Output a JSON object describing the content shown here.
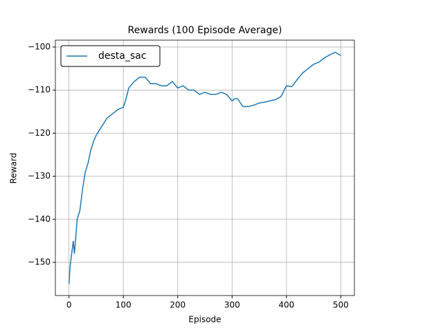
{
  "chart_data": {
    "type": "line",
    "title": "Rewards (100 Episode Average)",
    "x_label": "Episode",
    "y_label": "Reward",
    "x": [
      0,
      2,
      5,
      8,
      10,
      12,
      15,
      20,
      25,
      30,
      35,
      40,
      45,
      50,
      60,
      70,
      80,
      90,
      100,
      105,
      110,
      120,
      130,
      140,
      150,
      160,
      170,
      180,
      190,
      200,
      210,
      220,
      230,
      240,
      250,
      260,
      270,
      280,
      290,
      300,
      305,
      310,
      320,
      330,
      340,
      350,
      360,
      370,
      380,
      390,
      400,
      410,
      420,
      430,
      440,
      450,
      460,
      470,
      480,
      490,
      500
    ],
    "series": [
      {
        "name": "desta_sac",
        "color": "#1f77b4",
        "values": [
          -155,
          -151,
          -148,
          -145,
          -148,
          -145,
          -140,
          -138,
          -133,
          -129,
          -127,
          -124,
          -122,
          -120.5,
          -118.5,
          -116.5,
          -115.5,
          -114.5,
          -114,
          -112,
          -109.5,
          -108,
          -107,
          -107,
          -108.5,
          -108.5,
          -109,
          -109,
          -108,
          -109.5,
          -109,
          -110,
          -110,
          -111,
          -110.5,
          -111,
          -111,
          -110.5,
          -111,
          -112.5,
          -112,
          -112,
          -113.8,
          -113.8,
          -113.5,
          -113,
          -112.8,
          -112.5,
          -112.2,
          -111.5,
          -109,
          -109.2,
          -107.5,
          -106,
          -105,
          -104,
          -103.5,
          -102.5,
          -101.8,
          -101.2,
          -102
        ]
      }
    ],
    "xlim": [
      -25,
      525
    ],
    "ylim": [
      -157.7,
      -98.4
    ],
    "xticks": [
      0,
      100,
      200,
      300,
      400,
      500
    ],
    "yticks": [
      {
        "value": -150,
        "label": "−150"
      },
      {
        "value": -140,
        "label": "−140"
      },
      {
        "value": -130,
        "label": "−130"
      },
      {
        "value": -120,
        "label": "−120"
      },
      {
        "value": -110,
        "label": "−110"
      },
      {
        "value": -100,
        "label": "−100"
      }
    ],
    "grid": true,
    "legend": "upper left"
  }
}
